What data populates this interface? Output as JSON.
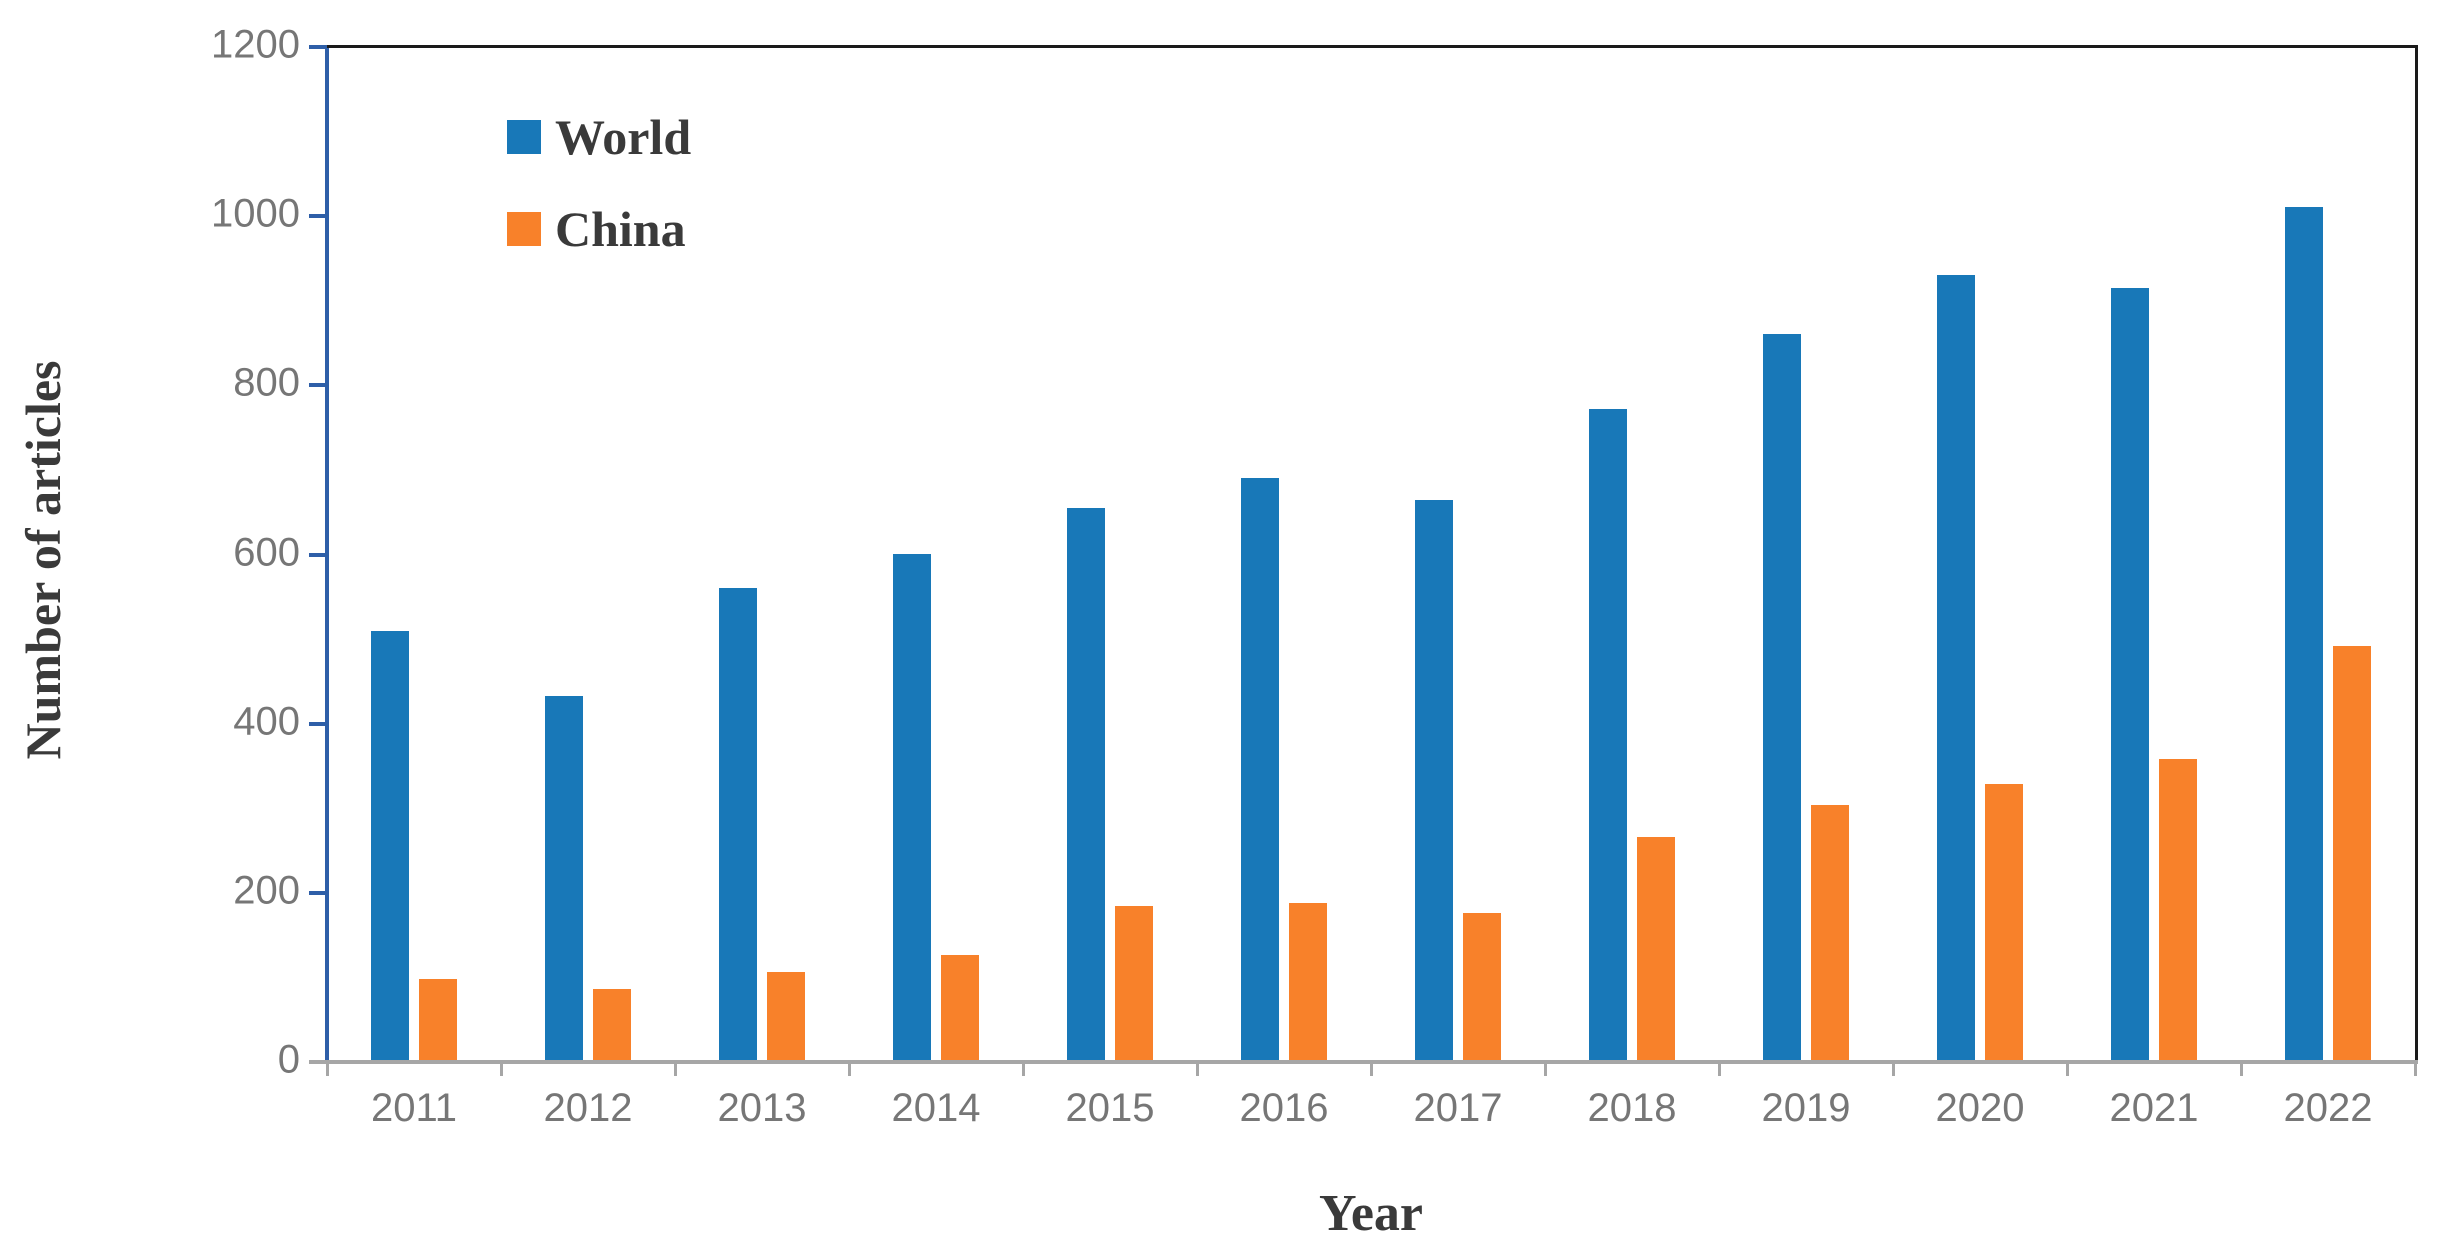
{
  "figure": {
    "y_axis_title": "Number of articles",
    "x_axis_title": "Year"
  },
  "chart_data": {
    "type": "bar",
    "title": "",
    "xlabel": "Year",
    "ylabel": "Number of articles",
    "categories": [
      "2011",
      "2012",
      "2013",
      "2014",
      "2015",
      "2016",
      "2017",
      "2018",
      "2019",
      "2020",
      "2021",
      "2022"
    ],
    "series": [
      {
        "name": "World",
        "color": "#1878B8",
        "values": [
          510,
          433,
          560,
          601,
          655,
          690,
          665,
          772,
          861,
          930,
          915,
          1011
        ]
      },
      {
        "name": "China",
        "color": "#F8812A",
        "values": [
          98,
          86,
          106,
          127,
          184,
          188,
          176,
          266,
          304,
          329,
          358,
          492
        ]
      }
    ],
    "ylim": [
      0,
      1200
    ],
    "yticks": [
      0,
      200,
      400,
      600,
      800,
      1000,
      1200
    ],
    "grid": false,
    "legend_position": "top-left-inside",
    "colors": {
      "y_axis": "#2E5FA8",
      "x_axis": "#A6A6A6",
      "plot_border": "#1a1a1a",
      "tick_label": "#767676",
      "axis_title": "#3A3A3A"
    }
  }
}
